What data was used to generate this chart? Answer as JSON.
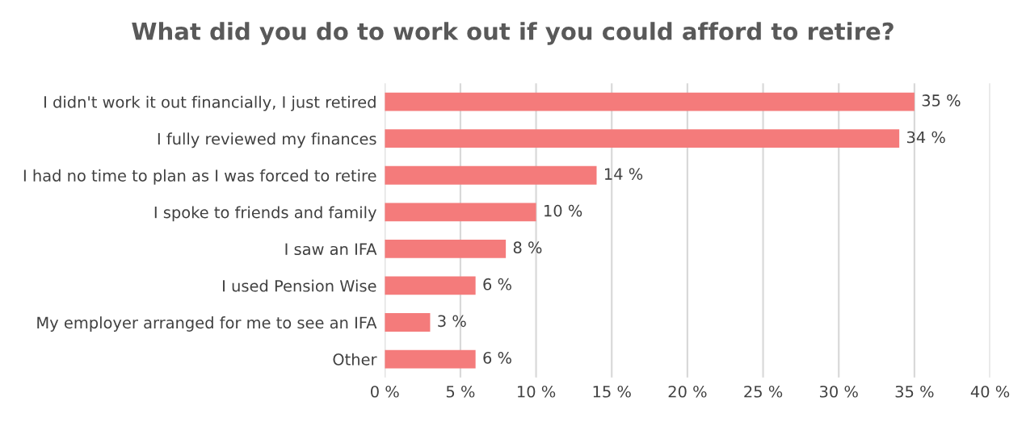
{
  "chart_data": {
    "type": "bar",
    "orientation": "horizontal",
    "title": "What did you do to work out if you could afford to retire?",
    "categories": [
      "I didn't work it out financially, I just retired",
      "I fully reviewed my finances",
      "I had no time to plan as I was forced to retire",
      "I spoke to friends and family",
      "I saw an IFA",
      "I used Pension Wise",
      "My employer arranged for me to see an IFA",
      "Other"
    ],
    "values": [
      35,
      34,
      14,
      10,
      8,
      6,
      3,
      6
    ],
    "value_labels": [
      "35 %",
      "34 %",
      "14 %",
      "10 %",
      "8 %",
      "6 %",
      "3 %",
      "6 %"
    ],
    "color": "#f47b7b",
    "xlim": [
      0,
      40
    ],
    "xticks": [
      {
        "value": 0,
        "label": "0 %"
      },
      {
        "value": 5,
        "label": "5 %"
      },
      {
        "value": 10,
        "label": "10 %"
      },
      {
        "value": 15,
        "label": "15 %"
      },
      {
        "value": 20,
        "label": "20 %"
      },
      {
        "value": 25,
        "label": "25 %"
      },
      {
        "value": 30,
        "label": "30 %"
      },
      {
        "value": 35,
        "label": "35 %"
      },
      {
        "value": 40,
        "label": "40 %"
      }
    ],
    "grid": "x",
    "legend": false
  }
}
